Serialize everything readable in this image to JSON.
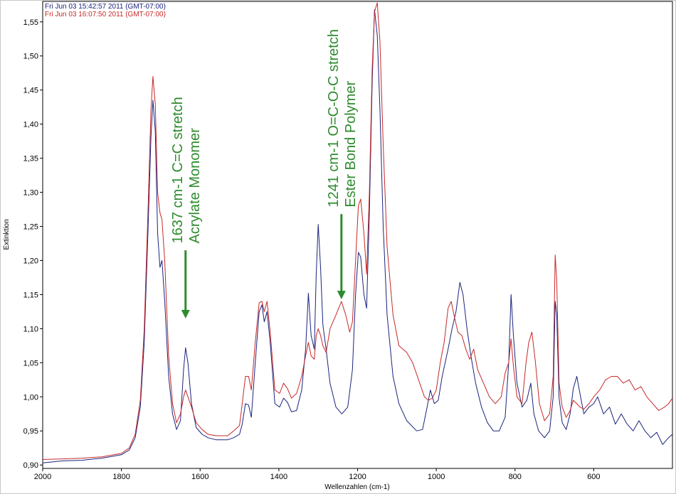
{
  "chart_data": {
    "type": "line",
    "xlabel": "Wellenzahlen (cm-1)",
    "ylabel": "Extinktion",
    "xlim": [
      2000,
      400
    ],
    "ylim": [
      0.895,
      1.58
    ],
    "x_ticks": [
      2000,
      1800,
      1600,
      1400,
      1200,
      1000,
      800,
      600
    ],
    "y_ticks": [
      0.9,
      0.95,
      1.0,
      1.05,
      1.1,
      1.15,
      1.2,
      1.25,
      1.3,
      1.35,
      1.4,
      1.45,
      1.5,
      1.55
    ],
    "y_tick_labels": [
      "0,90",
      "0,95",
      "1,00",
      "1,05",
      "1,10",
      "1,15",
      "1,20",
      "1,25",
      "1,30",
      "1,35",
      "1,40",
      "1,45",
      "1,50",
      "1,55"
    ],
    "grid": false,
    "legend_position": "top-left",
    "colors": {
      "series1": "#1a237e",
      "series2": "#c62828",
      "annotation": "#2e8b2e"
    },
    "series": [
      {
        "name": "Fri Jun 03 15:42:57 2011 (GMT-07:00)",
        "color": "#1a237e",
        "points": [
          [
            2000,
            0.903
          ],
          [
            1950,
            0.906
          ],
          [
            1900,
            0.907
          ],
          [
            1850,
            0.91
          ],
          [
            1800,
            0.915
          ],
          [
            1780,
            0.922
          ],
          [
            1765,
            0.94
          ],
          [
            1752,
            0.985
          ],
          [
            1742,
            1.08
          ],
          [
            1732,
            1.25
          ],
          [
            1725,
            1.38
          ],
          [
            1720,
            1.435
          ],
          [
            1714,
            1.39
          ],
          [
            1708,
            1.24
          ],
          [
            1702,
            1.19
          ],
          [
            1697,
            1.2
          ],
          [
            1690,
            1.14
          ],
          [
            1680,
            1.03
          ],
          [
            1670,
            0.975
          ],
          [
            1660,
            0.952
          ],
          [
            1650,
            0.965
          ],
          [
            1642,
            1.04
          ],
          [
            1637,
            1.072
          ],
          [
            1631,
            1.05
          ],
          [
            1622,
            0.99
          ],
          [
            1610,
            0.955
          ],
          [
            1595,
            0.945
          ],
          [
            1580,
            0.94
          ],
          [
            1560,
            0.937
          ],
          [
            1530,
            0.937
          ],
          [
            1515,
            0.94
          ],
          [
            1500,
            0.945
          ],
          [
            1493,
            0.96
          ],
          [
            1485,
            0.99
          ],
          [
            1477,
            0.988
          ],
          [
            1470,
            0.97
          ],
          [
            1460,
            1.05
          ],
          [
            1450,
            1.125
          ],
          [
            1443,
            1.135
          ],
          [
            1437,
            1.11
          ],
          [
            1430,
            1.125
          ],
          [
            1422,
            1.08
          ],
          [
            1410,
            0.99
          ],
          [
            1398,
            0.985
          ],
          [
            1388,
            0.998
          ],
          [
            1378,
            0.992
          ],
          [
            1368,
            0.978
          ],
          [
            1355,
            0.98
          ],
          [
            1342,
            1.01
          ],
          [
            1332,
            1.07
          ],
          [
            1325,
            1.152
          ],
          [
            1318,
            1.09
          ],
          [
            1310,
            1.07
          ],
          [
            1305,
            1.18
          ],
          [
            1300,
            1.253
          ],
          [
            1294,
            1.19
          ],
          [
            1288,
            1.105
          ],
          [
            1280,
            1.07
          ],
          [
            1270,
            1.02
          ],
          [
            1255,
            0.985
          ],
          [
            1240,
            0.975
          ],
          [
            1225,
            0.985
          ],
          [
            1213,
            1.04
          ],
          [
            1205,
            1.15
          ],
          [
            1198,
            1.212
          ],
          [
            1192,
            1.205
          ],
          [
            1184,
            1.15
          ],
          [
            1177,
            1.13
          ],
          [
            1170,
            1.27
          ],
          [
            1163,
            1.46
          ],
          [
            1157,
            1.568
          ],
          [
            1150,
            1.53
          ],
          [
            1143,
            1.42
          ],
          [
            1135,
            1.25
          ],
          [
            1125,
            1.12
          ],
          [
            1110,
            1.03
          ],
          [
            1095,
            0.99
          ],
          [
            1075,
            0.965
          ],
          [
            1050,
            0.95
          ],
          [
            1035,
            0.952
          ],
          [
            1025,
            0.98
          ],
          [
            1015,
            1.01
          ],
          [
            1005,
            0.99
          ],
          [
            995,
            0.995
          ],
          [
            985,
            1.03
          ],
          [
            970,
            1.07
          ],
          [
            960,
            1.1
          ],
          [
            950,
            1.125
          ],
          [
            940,
            1.168
          ],
          [
            932,
            1.15
          ],
          [
            922,
            1.1
          ],
          [
            912,
            1.06
          ],
          [
            900,
            1.02
          ],
          [
            885,
            0.985
          ],
          [
            870,
            0.962
          ],
          [
            855,
            0.95
          ],
          [
            840,
            0.95
          ],
          [
            825,
            0.97
          ],
          [
            816,
            1.05
          ],
          [
            810,
            1.15
          ],
          [
            804,
            1.09
          ],
          [
            795,
            1.02
          ],
          [
            782,
            0.985
          ],
          [
            770,
            0.995
          ],
          [
            760,
            1.02
          ],
          [
            752,
            0.975
          ],
          [
            740,
            0.95
          ],
          [
            725,
            0.94
          ],
          [
            712,
            0.95
          ],
          [
            703,
            1.0
          ],
          [
            698,
            1.14
          ],
          [
            694,
            1.12
          ],
          [
            688,
            0.998
          ],
          [
            680,
            0.962
          ],
          [
            670,
            0.952
          ],
          [
            660,
            0.975
          ],
          [
            652,
            1.012
          ],
          [
            643,
            1.03
          ],
          [
            635,
            1.005
          ],
          [
            625,
            0.975
          ],
          [
            612,
            0.985
          ],
          [
            600,
            0.99
          ],
          [
            590,
            1.0
          ],
          [
            575,
            0.975
          ],
          [
            560,
            0.985
          ],
          [
            545,
            0.96
          ],
          [
            530,
            0.975
          ],
          [
            515,
            0.96
          ],
          [
            500,
            0.95
          ],
          [
            485,
            0.965
          ],
          [
            470,
            0.95
          ],
          [
            455,
            0.94
          ],
          [
            440,
            0.948
          ],
          [
            425,
            0.93
          ],
          [
            410,
            0.94
          ],
          [
            400,
            0.945
          ]
        ]
      },
      {
        "name": "Fri Jun 03 16:07:50 2011 (GMT-07:00)",
        "color": "#c62828",
        "points": [
          [
            2000,
            0.908
          ],
          [
            1950,
            0.909
          ],
          [
            1900,
            0.91
          ],
          [
            1850,
            0.912
          ],
          [
            1800,
            0.917
          ],
          [
            1780,
            0.925
          ],
          [
            1765,
            0.945
          ],
          [
            1752,
            0.995
          ],
          [
            1742,
            1.1
          ],
          [
            1732,
            1.28
          ],
          [
            1725,
            1.42
          ],
          [
            1720,
            1.47
          ],
          [
            1714,
            1.43
          ],
          [
            1708,
            1.3
          ],
          [
            1702,
            1.27
          ],
          [
            1697,
            1.26
          ],
          [
            1690,
            1.2
          ],
          [
            1680,
            1.06
          ],
          [
            1670,
            0.99
          ],
          [
            1660,
            0.962
          ],
          [
            1650,
            0.975
          ],
          [
            1642,
            1.0
          ],
          [
            1637,
            1.01
          ],
          [
            1631,
            1.0
          ],
          [
            1622,
            0.985
          ],
          [
            1610,
            0.962
          ],
          [
            1595,
            0.952
          ],
          [
            1580,
            0.945
          ],
          [
            1560,
            0.943
          ],
          [
            1530,
            0.943
          ],
          [
            1515,
            0.95
          ],
          [
            1500,
            0.958
          ],
          [
            1493,
            0.99
          ],
          [
            1485,
            1.03
          ],
          [
            1477,
            1.03
          ],
          [
            1470,
            1.01
          ],
          [
            1460,
            1.08
          ],
          [
            1450,
            1.138
          ],
          [
            1443,
            1.14
          ],
          [
            1437,
            1.125
          ],
          [
            1430,
            1.14
          ],
          [
            1422,
            1.095
          ],
          [
            1410,
            1.01
          ],
          [
            1398,
            1.005
          ],
          [
            1388,
            1.02
          ],
          [
            1378,
            1.012
          ],
          [
            1368,
            0.998
          ],
          [
            1355,
            1.005
          ],
          [
            1342,
            1.03
          ],
          [
            1332,
            1.06
          ],
          [
            1325,
            1.08
          ],
          [
            1318,
            1.06
          ],
          [
            1310,
            1.055
          ],
          [
            1305,
            1.09
          ],
          [
            1300,
            1.1
          ],
          [
            1294,
            1.09
          ],
          [
            1288,
            1.075
          ],
          [
            1280,
            1.065
          ],
          [
            1270,
            1.1
          ],
          [
            1255,
            1.12
          ],
          [
            1241,
            1.14
          ],
          [
            1230,
            1.12
          ],
          [
            1220,
            1.095
          ],
          [
            1213,
            1.11
          ],
          [
            1205,
            1.2
          ],
          [
            1198,
            1.28
          ],
          [
            1192,
            1.29
          ],
          [
            1184,
            1.24
          ],
          [
            1177,
            1.18
          ],
          [
            1170,
            1.3
          ],
          [
            1163,
            1.48
          ],
          [
            1157,
            1.565
          ],
          [
            1150,
            1.578
          ],
          [
            1143,
            1.52
          ],
          [
            1135,
            1.37
          ],
          [
            1125,
            1.22
          ],
          [
            1110,
            1.12
          ],
          [
            1095,
            1.075
          ],
          [
            1075,
            1.065
          ],
          [
            1060,
            1.05
          ],
          [
            1045,
            1.025
          ],
          [
            1030,
            1.0
          ],
          [
            1020,
            0.995
          ],
          [
            1010,
            0.998
          ],
          [
            1000,
            1.01
          ],
          [
            990,
            1.05
          ],
          [
            980,
            1.08
          ],
          [
            970,
            1.13
          ],
          [
            962,
            1.14
          ],
          [
            955,
            1.12
          ],
          [
            945,
            1.095
          ],
          [
            935,
            1.09
          ],
          [
            925,
            1.07
          ],
          [
            915,
            1.055
          ],
          [
            905,
            1.07
          ],
          [
            895,
            1.04
          ],
          [
            880,
            1.02
          ],
          [
            865,
            1.0
          ],
          [
            850,
            0.99
          ],
          [
            835,
            1.0
          ],
          [
            825,
            1.035
          ],
          [
            816,
            1.05
          ],
          [
            810,
            1.085
          ],
          [
            804,
            1.045
          ],
          [
            795,
            1.0
          ],
          [
            782,
            0.99
          ],
          [
            772,
            1.05
          ],
          [
            765,
            1.08
          ],
          [
            757,
            1.095
          ],
          [
            748,
            1.05
          ],
          [
            738,
            0.99
          ],
          [
            725,
            0.965
          ],
          [
            712,
            0.975
          ],
          [
            703,
            1.03
          ],
          [
            698,
            1.208
          ],
          [
            694,
            1.17
          ],
          [
            688,
            1.02
          ],
          [
            680,
            0.985
          ],
          [
            670,
            0.97
          ],
          [
            660,
            0.98
          ],
          [
            652,
            0.995
          ],
          [
            643,
            0.99
          ],
          [
            635,
            0.985
          ],
          [
            625,
            0.982
          ],
          [
            612,
            0.99
          ],
          [
            600,
            1.0
          ],
          [
            585,
            1.01
          ],
          [
            570,
            1.025
          ],
          [
            555,
            1.03
          ],
          [
            540,
            1.03
          ],
          [
            525,
            1.02
          ],
          [
            510,
            1.025
          ],
          [
            495,
            1.01
          ],
          [
            480,
            1.015
          ],
          [
            465,
            1.0
          ],
          [
            450,
            0.99
          ],
          [
            435,
            0.98
          ],
          [
            420,
            0.985
          ],
          [
            410,
            0.99
          ],
          [
            400,
            0.998
          ]
        ]
      }
    ],
    "annotations": [
      {
        "lines": [
          "1637 cm-1  C=C stretch",
          "Acrylate Monomer"
        ],
        "x": 1637,
        "arrow_tip_y": 1.115,
        "arrow_base_y": 1.215,
        "text_bottom_y": 1.225
      },
      {
        "lines": [
          "1241 cm-1  O=C-O-C stretch",
          "Ester Bond Polymer"
        ],
        "x": 1241,
        "arrow_tip_y": 1.143,
        "arrow_base_y": 1.268,
        "text_bottom_y": 1.278
      }
    ]
  }
}
